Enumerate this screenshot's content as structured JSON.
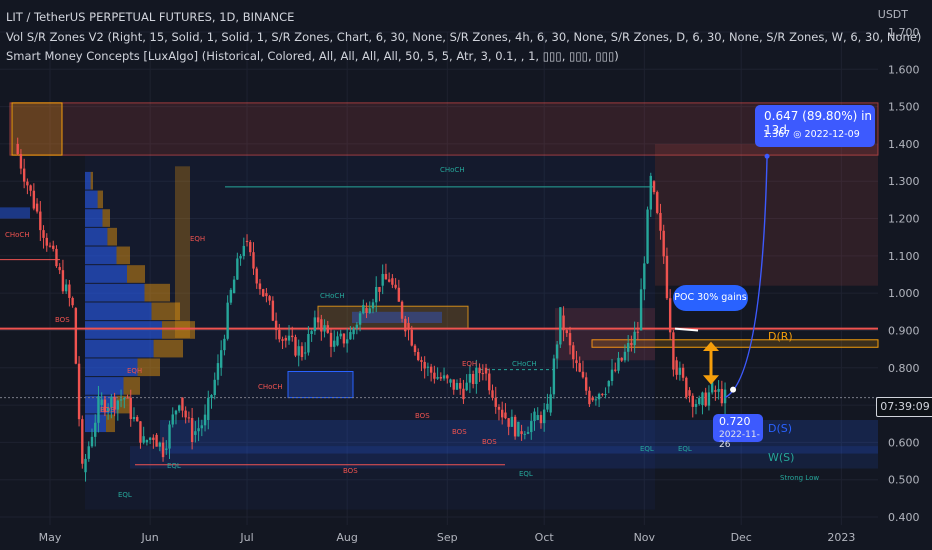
{
  "header": {
    "symbol_line": "LIT / TetherUS PERPETUAL FUTURES, 1D, BINANCE",
    "indicator1": "Vol S/R Zones V2 (Right, 15, Solid, 1, Solid, 1, S/R Zones, Chart, 6, 30, None, S/R Zones, 4h, 6, 30, None, S/R Zones, D, 6, 30, None, S/R Zones, W, 6, 30, None)",
    "indicator2": "Smart Money Concepts [LuxAlgo] (Historical, Colored, All, All, All, All, 50, 5, 5, Atr, 3, 0.1, , 1, ▯▯▯, ▯▯▯, ▯▯▯)"
  },
  "axis": {
    "unit": "USDT",
    "price_labels": [
      "1.700",
      "1.600",
      "1.500",
      "1.400",
      "1.300",
      "1.200",
      "1.100",
      "1.000",
      "0.900",
      "0.800",
      "0.600",
      "0.500",
      "0.400"
    ],
    "time_labels": [
      "May",
      "Jun",
      "Jul",
      "Aug",
      "Sep",
      "Oct",
      "Nov",
      "Dec",
      "2023"
    ],
    "current_time": "07:39:09"
  },
  "callouts": {
    "target_line1": "0.647 (89.80%) in 13d",
    "target_line2": "1.367 ◎ 2022-12-09",
    "entry_price": "0.720",
    "entry_date": "2022-11-26",
    "poc": "POC 30% gains"
  },
  "labels": {
    "choch_top": "CHoCH",
    "choch_left": "CHoCH",
    "choch_mid": "CHoCH",
    "choch_aug": "CHoCH",
    "choch_oct": "CHoCH",
    "bos1": "BOS",
    "bos2": "BOS",
    "bos3": "BOS",
    "bos4": "BOS",
    "bos5": "BOS",
    "bos6": "BOS",
    "eqh1": "EQH",
    "eqh2": "EQH",
    "eqh3": "EQH",
    "eql1": "EQL",
    "eql2": "EQL",
    "eql3": "EQL",
    "eql4": "EQL",
    "eql5": "EQL",
    "dr": "D(R)",
    "ds": "D(S)",
    "ws": "W(S)",
    "strong_low": "Strong Low"
  },
  "chart_data": {
    "type": "candlestick",
    "symbol": "LIT / TetherUS PERPETUAL FUTURES",
    "interval": "1D",
    "exchange": "BINANCE",
    "ylim": [
      0.4,
      1.7
    ],
    "y_unit": "USDT",
    "colors": {
      "up": "#26a69a",
      "down": "#ef5350",
      "zone_orange": "#f59e0b",
      "zone_blue": "#2962ff",
      "zone_red": "#ef5350"
    },
    "price_path": [
      [
        "2022-04-20",
        1.4
      ],
      [
        "2022-04-26",
        1.24
      ],
      [
        "2022-05-03",
        1.07
      ],
      [
        "2022-05-08",
        0.96
      ],
      [
        "2022-05-11",
        0.52
      ],
      [
        "2022-05-16",
        0.7
      ],
      [
        "2022-05-24",
        0.72
      ],
      [
        "2022-05-30",
        0.6
      ],
      [
        "2022-06-02",
        0.62
      ],
      [
        "2022-06-05",
        0.58
      ],
      [
        "2022-06-10",
        0.72
      ],
      [
        "2022-06-14",
        0.62
      ],
      [
        "2022-06-18",
        0.66
      ],
      [
        "2022-06-22",
        0.8
      ],
      [
        "2022-06-26",
        1.0
      ],
      [
        "2022-06-30",
        1.14
      ],
      [
        "2022-07-06",
        1.0
      ],
      [
        "2022-07-12",
        0.88
      ],
      [
        "2022-07-18",
        0.84
      ],
      [
        "2022-07-23",
        0.93
      ],
      [
        "2022-07-28",
        0.86
      ],
      [
        "2022-08-02",
        0.89
      ],
      [
        "2022-08-06",
        0.96
      ],
      [
        "2022-08-11",
        1.02
      ],
      [
        "2022-08-14",
        1.04
      ],
      [
        "2022-08-19",
        0.92
      ],
      [
        "2022-08-25",
        0.8
      ],
      [
        "2022-09-01",
        0.76
      ],
      [
        "2022-09-06",
        0.74
      ],
      [
        "2022-09-12",
        0.8
      ],
      [
        "2022-09-18",
        0.68
      ],
      [
        "2022-09-23",
        0.63
      ],
      [
        "2022-09-28",
        0.66
      ],
      [
        "2022-10-02",
        0.68
      ],
      [
        "2022-10-06",
        0.94
      ],
      [
        "2022-10-10",
        0.82
      ],
      [
        "2022-10-15",
        0.72
      ],
      [
        "2022-10-20",
        0.75
      ],
      [
        "2022-10-25",
        0.82
      ],
      [
        "2022-10-30",
        0.9
      ],
      [
        "2022-11-03",
        1.3
      ],
      [
        "2022-11-07",
        1.1
      ],
      [
        "2022-11-10",
        0.82
      ],
      [
        "2022-11-14",
        0.74
      ],
      [
        "2022-11-18",
        0.7
      ],
      [
        "2022-11-22",
        0.74
      ],
      [
        "2022-11-26",
        0.72
      ]
    ],
    "current_price": 0.72,
    "projection": {
      "from_date": "2022-11-26",
      "from_price": 0.72,
      "to_date": "2022-12-09",
      "to_price": 1.367,
      "change": 0.647,
      "change_pct": 89.8,
      "days": 13
    },
    "levels": {
      "D(R)": 0.865,
      "D(S)": 0.645,
      "W(S)": 0.585
    },
    "annotations": [
      "CHoCH",
      "BOS",
      "EQH",
      "EQL",
      "Strong Low",
      "POC 30% gains"
    ]
  }
}
